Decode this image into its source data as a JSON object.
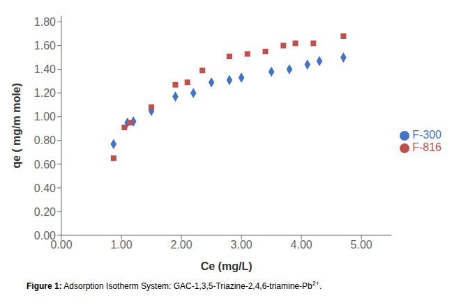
{
  "chart_data": {
    "type": "scatter",
    "xlabel": "Ce  (mg/L)",
    "ylabel": "qe ( mg/m mole)",
    "annotations": [
      "Figure 1:",
      "Adsorption Isotherm System: GAC-1,3,5-Triazine-2,4,6-triamine-Pb",
      "2+",
      "."
    ],
    "series": [
      {
        "name": "F-300",
        "color": "#4472C4",
        "marker": "diamond",
        "x": [
          0.87,
          1.1,
          1.2,
          1.5,
          1.9,
          2.2,
          2.5,
          2.8,
          3.0,
          3.5,
          3.8,
          4.1,
          4.3,
          4.7
        ],
        "values": [
          0.77,
          0.95,
          0.96,
          1.05,
          1.17,
          1.2,
          1.29,
          1.31,
          1.33,
          1.38,
          1.4,
          1.44,
          1.47,
          1.5
        ]
      },
      {
        "name": "F-816",
        "color": "#C0504D",
        "marker": "square",
        "x": [
          0.87,
          1.05,
          1.15,
          1.5,
          1.9,
          2.1,
          2.35,
          2.8,
          3.1,
          3.4,
          3.7,
          3.9,
          4.2,
          4.7
        ],
        "values": [
          0.65,
          0.91,
          0.95,
          1.08,
          1.27,
          1.29,
          1.39,
          1.51,
          1.53,
          1.55,
          1.6,
          1.62,
          1.62,
          1.68
        ]
      }
    ],
    "xlim": [
      0.0,
      5.5
    ],
    "ylim": [
      0.0,
      1.85
    ],
    "xticks": [
      {
        "value": 0,
        "label": "0.00"
      },
      {
        "value": 1,
        "label": "1.00"
      },
      {
        "value": 2,
        "label": "2.00"
      },
      {
        "value": 3,
        "label": "3.00"
      },
      {
        "value": 4,
        "label": "4.00"
      },
      {
        "value": 5,
        "label": "5.00"
      }
    ],
    "yticks": [
      {
        "value": 0,
        "label": "0.00"
      },
      {
        "value": 0.2,
        "label": "0.20"
      },
      {
        "value": 0.4,
        "label": "0.40"
      },
      {
        "value": 0.6,
        "label": "0.60"
      },
      {
        "value": 0.8,
        "label": "0.80"
      },
      {
        "value": 1.0,
        "label": "1.00"
      },
      {
        "value": 1.2,
        "label": "1.20"
      },
      {
        "value": 1.4,
        "label": "1.40"
      },
      {
        "value": 1.6,
        "label": "1.60"
      },
      {
        "value": 1.8,
        "label": "1.80"
      }
    ],
    "grid": false,
    "legend": "right"
  }
}
